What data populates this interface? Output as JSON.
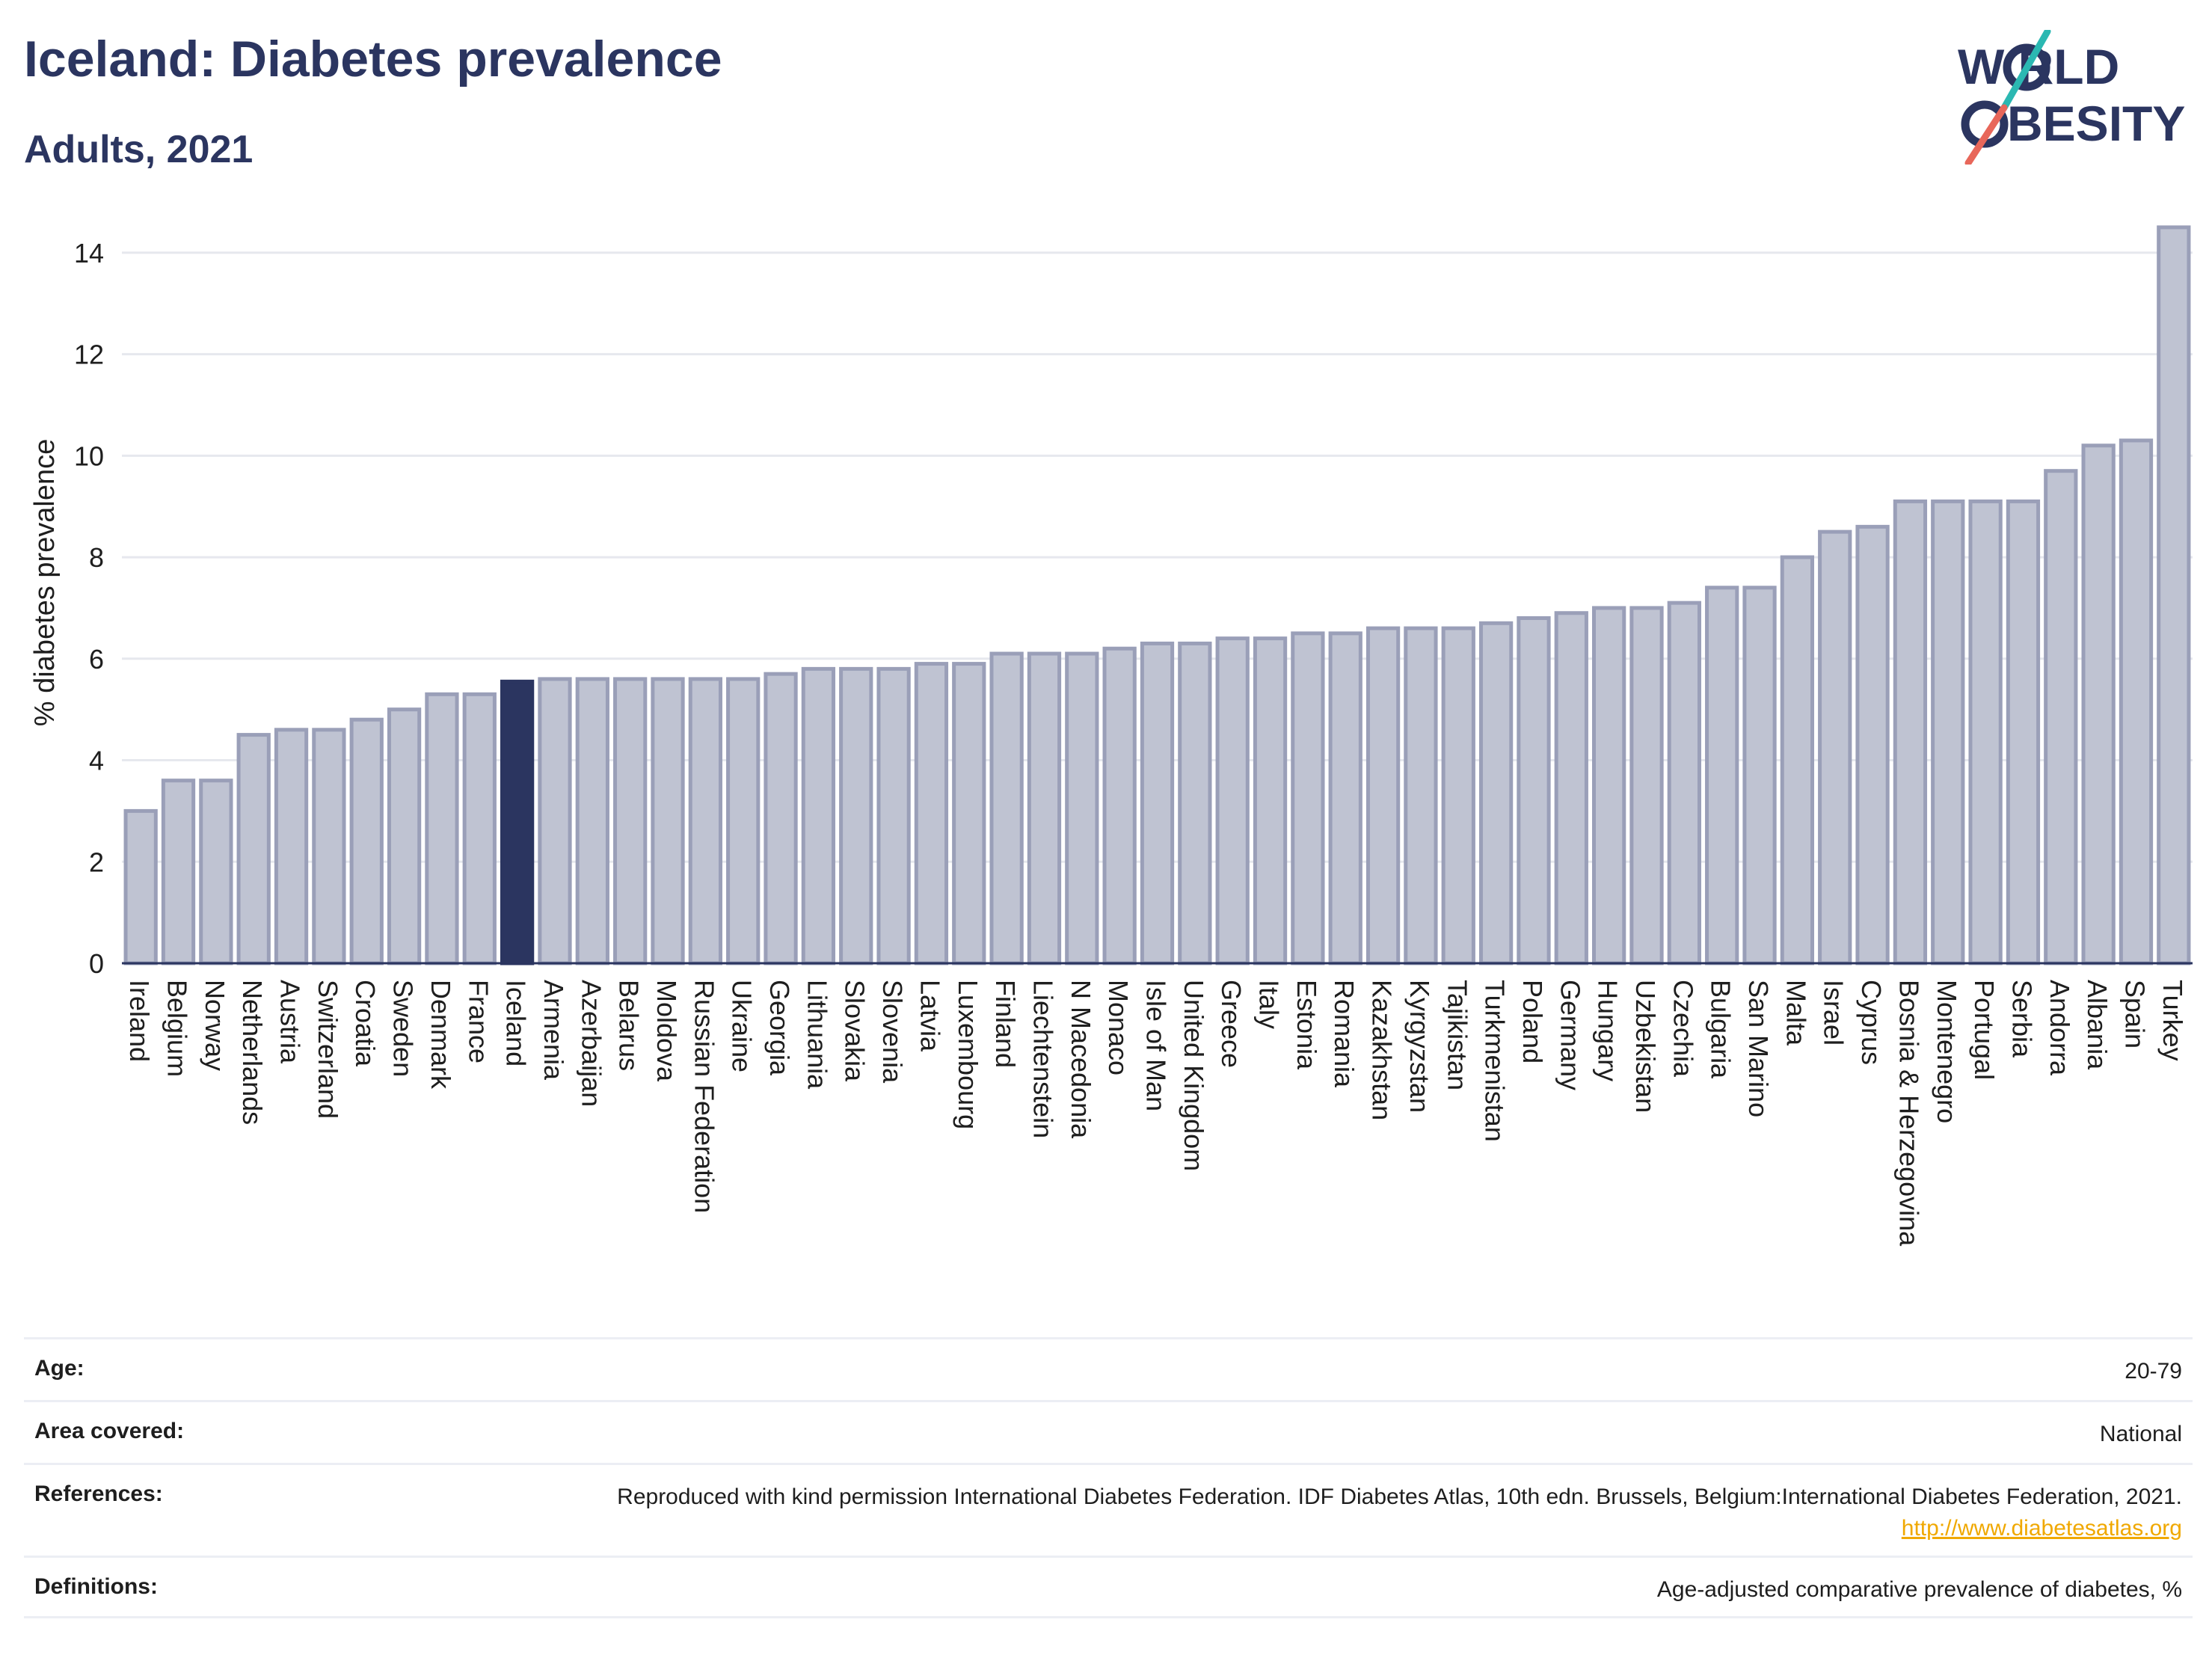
{
  "header": {
    "title": "Iceland: Diabetes prevalence",
    "subtitle": "Adults, 2021"
  },
  "logo": {
    "line1": "W RLD",
    "line2": "BESITY",
    "accent_teal": "#2bb8b2",
    "accent_red": "#e8675a",
    "text_color": "#2b3560"
  },
  "chart_data": {
    "type": "bar",
    "ylabel": "% diabetes prevalence",
    "ylim": [
      0,
      15
    ],
    "yticks": [
      0,
      2,
      4,
      6,
      8,
      10,
      12,
      14
    ],
    "grid": true,
    "highlight": "Iceland",
    "highlight_color": "#2b3560",
    "bar_color": "#bfc3d2",
    "bar_border_color": "#9a9fb8",
    "categories": [
      "Ireland",
      "Belgium",
      "Norway",
      "Netherlands",
      "Austria",
      "Switzerland",
      "Croatia",
      "Sweden",
      "Denmark",
      "France",
      "Iceland",
      "Armenia",
      "Azerbaijan",
      "Belarus",
      "Moldova",
      "Russian Federation",
      "Ukraine",
      "Georgia",
      "Lithuania",
      "Slovakia",
      "Slovenia",
      "Latvia",
      "Luxembourg",
      "Finland",
      "Liechtenstein",
      "N Macedonia",
      "Monaco",
      "Isle of Man",
      "United Kingdom",
      "Greece",
      "Italy",
      "Estonia",
      "Romania",
      "Kazakhstan",
      "Kyrgyzstan",
      "Tajikistan",
      "Turkmenistan",
      "Poland",
      "Germany",
      "Hungary",
      "Uzbekistan",
      "Czechia",
      "Bulgaria",
      "San Marino",
      "Malta",
      "Israel",
      "Cyprus",
      "Bosnia & Herzegovina",
      "Montenegro",
      "Portugal",
      "Serbia",
      "Andorra",
      "Albania",
      "Spain",
      "Turkey"
    ],
    "values": [
      3.0,
      3.6,
      3.6,
      4.5,
      4.6,
      4.6,
      4.8,
      5.0,
      5.3,
      5.3,
      5.55,
      5.6,
      5.6,
      5.6,
      5.6,
      5.6,
      5.6,
      5.7,
      5.8,
      5.8,
      5.8,
      5.9,
      5.9,
      6.1,
      6.1,
      6.1,
      6.2,
      6.3,
      6.3,
      6.4,
      6.4,
      6.5,
      6.5,
      6.6,
      6.6,
      6.6,
      6.7,
      6.8,
      6.9,
      7.0,
      7.0,
      7.1,
      7.4,
      7.4,
      8.0,
      8.5,
      8.6,
      9.1,
      9.1,
      9.1,
      9.1,
      9.7,
      10.2,
      10.3,
      14.5
    ]
  },
  "meta": {
    "rows": [
      {
        "label": "Age:",
        "value": "20-79"
      },
      {
        "label": "Area covered:",
        "value": "National"
      },
      {
        "label": "References:",
        "value": "Reproduced with kind permission International Diabetes Federation.  IDF Diabetes Atlas, 10th edn. Brussels, Belgium:International Diabetes Federation, 2021.",
        "link": "http://www.diabetesatlas.org"
      },
      {
        "label": "Definitions:",
        "value": "Age-adjusted comparative prevalence of diabetes, %"
      }
    ]
  }
}
